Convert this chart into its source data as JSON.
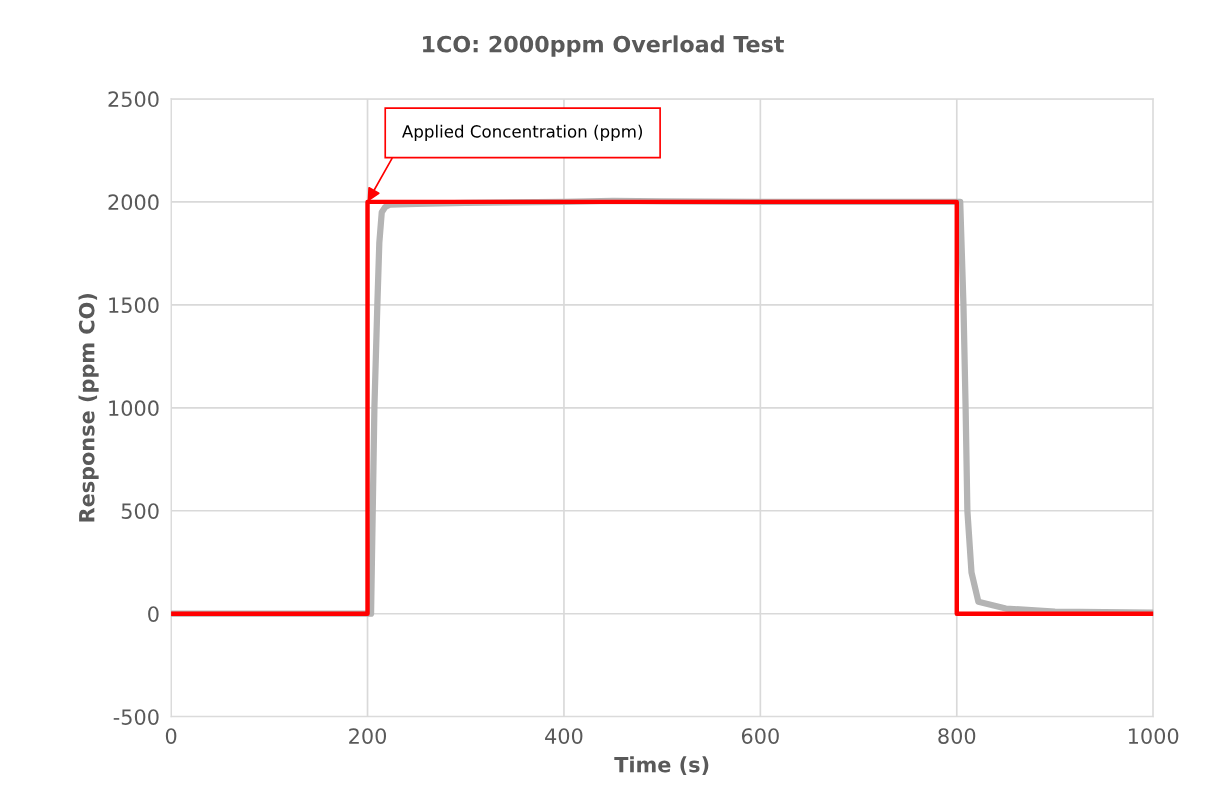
{
  "chart_data": {
    "type": "line",
    "title": "1CO: 2000ppm Overload Test",
    "xlabel": "Time (s)",
    "ylabel": "Response (ppm CO)",
    "series": [
      {
        "color": "#b4b4b4",
        "x": [
          0,
          200,
          203.6,
          207,
          210,
          212,
          214.5,
          218,
          223,
          250,
          300,
          400,
          450,
          500,
          600,
          700,
          800,
          803.5,
          806.8,
          809,
          810.8,
          815,
          822,
          850,
          900,
          1000
        ],
        "values": [
          0,
          0,
          0,
          1000,
          1500,
          1800,
          1950,
          1975,
          1987,
          1990,
          1995,
          2000,
          2005,
          2003,
          2000,
          2000,
          2000,
          2000,
          1500,
          1000,
          500,
          200,
          58,
          25,
          10,
          5
        ]
      },
      {
        "color": "#ff0000",
        "x": [
          0,
          200,
          200,
          800,
          800,
          1000
        ],
        "values": [
          0,
          0,
          2000,
          2000,
          0,
          0
        ]
      }
    ],
    "annotations": [
      {
        "text": "Applied Concentration (ppm)",
        "x": 200,
        "y": 2000
      }
    ],
    "xlim": [
      0,
      1000
    ],
    "ylim": [
      -500,
      2500
    ],
    "xticks": [
      0,
      200,
      400,
      600,
      800,
      1000
    ],
    "yticks": [
      -500,
      0,
      500,
      1000,
      1500,
      2000,
      2500
    ],
    "grid": true,
    "legend": false
  }
}
